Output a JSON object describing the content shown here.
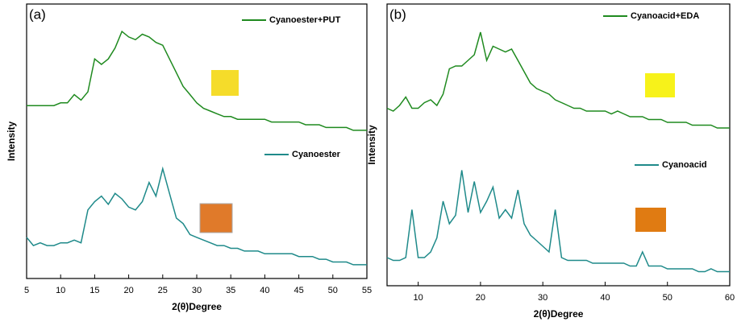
{
  "chart_data": [
    {
      "type": "line",
      "label": "(a)",
      "x_label": "2(θ)Degree",
      "y_label": "Intensity",
      "xlim": [
        5,
        55
      ],
      "ylim": [
        0,
        100
      ],
      "xticks": [
        5,
        10,
        15,
        20,
        25,
        30,
        35,
        40,
        45,
        50,
        55
      ],
      "x": [
        5,
        6,
        7,
        8,
        9,
        10,
        11,
        12,
        13,
        14,
        15,
        16,
        17,
        18,
        19,
        20,
        21,
        22,
        23,
        24,
        25,
        26,
        27,
        28,
        29,
        30,
        31,
        32,
        33,
        34,
        35,
        36,
        37,
        38,
        39,
        40,
        41,
        42,
        43,
        44,
        45,
        46,
        47,
        48,
        49,
        50,
        51,
        52,
        53,
        54,
        55
      ],
      "series": [
        {
          "name": "Cyanoester+PUT",
          "color": "#1f8a1f",
          "values": [
            63,
            63,
            63,
            63,
            63,
            64,
            64,
            67,
            65,
            68,
            80,
            78,
            80,
            84,
            90,
            88,
            87,
            89,
            88,
            86,
            85,
            80,
            75,
            70,
            67,
            64,
            62,
            61,
            60,
            59,
            59,
            58,
            58,
            58,
            58,
            58,
            57,
            57,
            57,
            57,
            57,
            56,
            56,
            56,
            55,
            55,
            55,
            55,
            54,
            54,
            54
          ]
        },
        {
          "name": "Cyanoester",
          "color": "#1f8a8a",
          "values": [
            15,
            12,
            13,
            12,
            12,
            13,
            13,
            14,
            13,
            25,
            28,
            30,
            27,
            31,
            29,
            26,
            25,
            28,
            35,
            30,
            40,
            31,
            22,
            20,
            16,
            15,
            14,
            13,
            12,
            12,
            11,
            11,
            10,
            10,
            10,
            9,
            9,
            9,
            9,
            9,
            8,
            8,
            8,
            7,
            7,
            6,
            6,
            6,
            5,
            5,
            5
          ]
        }
      ]
    },
    {
      "type": "line",
      "label": "(b)",
      "x_label": "2(θ)Degree",
      "y_label": "Intensity",
      "xlim": [
        5,
        60
      ],
      "ylim": [
        0,
        100
      ],
      "xticks": [
        10,
        20,
        30,
        40,
        50,
        60
      ],
      "x": [
        5,
        6,
        7,
        8,
        9,
        10,
        11,
        12,
        13,
        14,
        15,
        16,
        17,
        18,
        19,
        20,
        21,
        22,
        23,
        24,
        25,
        26,
        27,
        28,
        29,
        30,
        31,
        32,
        33,
        34,
        35,
        36,
        37,
        38,
        39,
        40,
        41,
        42,
        43,
        44,
        45,
        46,
        47,
        48,
        49,
        50,
        51,
        52,
        53,
        54,
        55,
        56,
        57,
        58,
        59,
        60
      ],
      "series": [
        {
          "name": "Cyanoacid+EDA",
          "color": "#1f8a1f",
          "values": [
            63,
            62,
            64,
            67,
            63,
            63,
            65,
            66,
            64,
            68,
            77,
            78,
            78,
            80,
            82,
            90,
            80,
            85,
            84,
            83,
            84,
            80,
            76,
            72,
            70,
            69,
            68,
            66,
            65,
            64,
            63,
            63,
            62,
            62,
            62,
            62,
            61,
            62,
            61,
            60,
            60,
            60,
            59,
            59,
            59,
            58,
            58,
            58,
            58,
            57,
            57,
            57,
            57,
            56,
            56,
            56
          ]
        },
        {
          "name": "Cyanoacid",
          "color": "#1f8a8a",
          "values": [
            10,
            9,
            9,
            10,
            27,
            10,
            10,
            12,
            17,
            30,
            22,
            25,
            41,
            26,
            37,
            26,
            30,
            35,
            24,
            27,
            24,
            34,
            22,
            18,
            16,
            14,
            12,
            27,
            10,
            9,
            9,
            9,
            9,
            8,
            8,
            8,
            8,
            8,
            8,
            7,
            7,
            12,
            7,
            7,
            7,
            6,
            6,
            6,
            6,
            6,
            5,
            5,
            6,
            5,
            5,
            5
          ]
        }
      ]
    }
  ]
}
